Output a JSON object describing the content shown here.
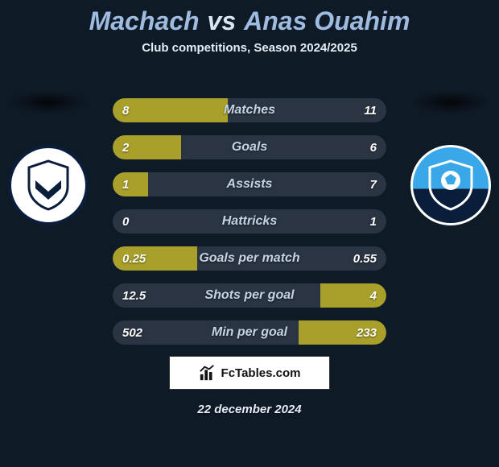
{
  "background_color": "#0f1a27",
  "title": {
    "player1": "Machach",
    "vs": "vs",
    "player2": "Anas Ouahim",
    "fontsize": 32,
    "player_color": "#9fbce0",
    "vs_color": "#dbe6f2"
  },
  "subtitle": {
    "text": "Club competitions, Season 2024/2025",
    "color": "#e6edf5",
    "fontsize": 15
  },
  "crests": {
    "shadow_color": "#07101a",
    "left": {
      "bg": "#ffffff",
      "border": "#0a1e3c",
      "svg_stroke": "#0a1e3c",
      "svg_fill": "#0a1e3c"
    },
    "right": {
      "bg_top": "#3aa8e8",
      "bg_bottom": "#0a1e3c",
      "border": "#ffffff",
      "svg_fill": "#ffffff"
    }
  },
  "stats": {
    "track_color": "#2a3442",
    "fill_color": "#a8a02a",
    "label_color": "#c6d3e2",
    "value_color": "#ffffff",
    "label_fontsize": 16,
    "value_fontsize": 15,
    "rows": [
      {
        "label": "Matches",
        "left_val": "8",
        "right_val": "11",
        "left_pct": 42,
        "right_pct": 0
      },
      {
        "label": "Goals",
        "left_val": "2",
        "right_val": "6",
        "left_pct": 25,
        "right_pct": 0
      },
      {
        "label": "Assists",
        "left_val": "1",
        "right_val": "7",
        "left_pct": 13,
        "right_pct": 0
      },
      {
        "label": "Hattricks",
        "left_val": "0",
        "right_val": "1",
        "left_pct": 0,
        "right_pct": 0
      },
      {
        "label": "Goals per match",
        "left_val": "0.25",
        "right_val": "0.55",
        "left_pct": 31,
        "right_pct": 0
      },
      {
        "label": "Shots per goal",
        "left_val": "12.5",
        "right_val": "4",
        "left_pct": 0,
        "right_pct": 24
      },
      {
        "label": "Min per goal",
        "left_val": "502",
        "right_val": "233",
        "left_pct": 0,
        "right_pct": 32
      }
    ]
  },
  "logo": {
    "text": "FcTables.com",
    "bg": "#ffffff",
    "text_color": "#111111",
    "icon_color": "#111111"
  },
  "date": {
    "text": "22 december 2024",
    "color": "#e6edf5",
    "fontsize": 15
  }
}
